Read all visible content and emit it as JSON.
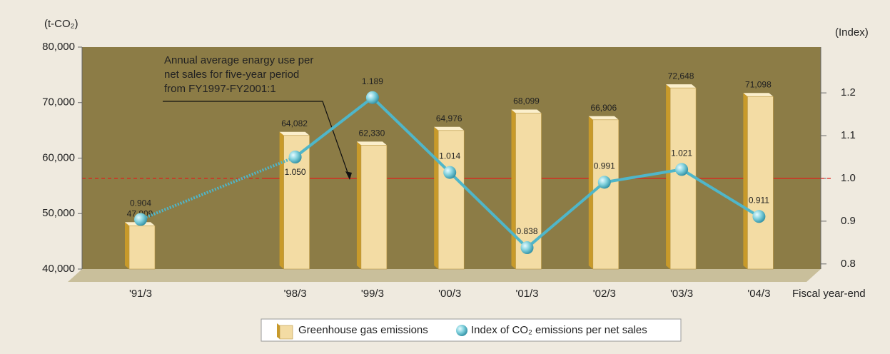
{
  "chart_data": {
    "type": "bar_line",
    "y_axis_label": "(t-CO₂)",
    "y2_axis_label": "(Index)",
    "x_axis_label": "Fiscal year-end",
    "annotation": [
      "Annual average enargy use per",
      "net sales for five-year period",
      "from FY1997-FY2001:1"
    ],
    "categories": [
      "'91/3",
      null,
      "'98/3",
      "'99/3",
      "'00/3",
      "'01/3",
      "'02/3",
      "'03/3",
      "'04/3"
    ],
    "series": [
      {
        "name": "Greenhouse gas emissions",
        "type": "bar",
        "color": "#f3dca4",
        "side_color": "#c89a2a",
        "values": [
          47809,
          null,
          64082,
          62330,
          64976,
          68099,
          66906,
          72648,
          71098
        ],
        "value_labels": [
          "47,809",
          null,
          "64,082",
          "62,330",
          "64,976",
          "68,099",
          "66,906",
          "72,648",
          "71,098"
        ]
      },
      {
        "name": "Index of CO₂ emissions per net sales",
        "type": "line",
        "axis": "y2",
        "color": "#4fb6c9",
        "values": [
          0.904,
          null,
          1.05,
          1.189,
          1.014,
          0.838,
          0.991,
          1.021,
          0.911
        ],
        "value_labels": [
          "0.904",
          null,
          "1.050",
          "1.189",
          "1.014",
          "0.838",
          "0.991",
          "1.021",
          "0.911"
        ]
      }
    ],
    "ylim": [
      40000,
      80000
    ],
    "yticks": [
      {
        "value": 40000,
        "label": "40,000"
      },
      {
        "value": 50000,
        "label": "50,000"
      },
      {
        "value": 60000,
        "label": "60,000"
      },
      {
        "value": 70000,
        "label": "70,000"
      },
      {
        "value": 80000,
        "label": "80,000"
      }
    ],
    "y2lim": [
      0.788,
      1.307
    ],
    "y2ticks": [
      0.8,
      0.9,
      {
        "value": 1,
        "label": "1.0"
      },
      1.1,
      1.2
    ],
    "y2_reference": 1,
    "reference_color": "#e0201a"
  }
}
